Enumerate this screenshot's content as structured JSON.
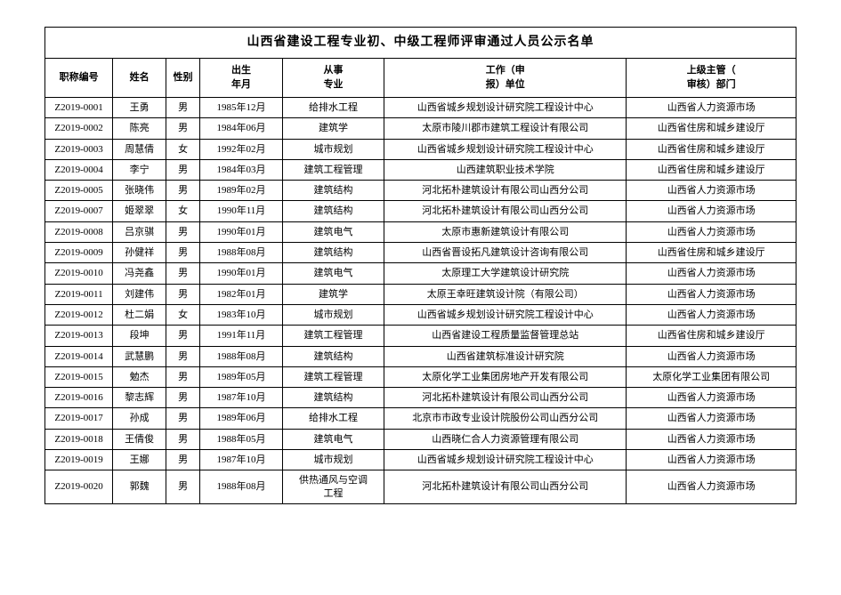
{
  "title": "山西省建设工程专业初、中级工程师评审通过人员公示名单",
  "columns": {
    "id": "职称编号",
    "name": "姓名",
    "sex": "性别",
    "birth": "出生\n年月",
    "major": "从事\n专业",
    "work": "工作（申\n报）单位",
    "dept": "上级主管（\n审核）部门"
  },
  "rows": [
    {
      "id": "Z2019-0001",
      "name": "王勇",
      "sex": "男",
      "birth": "1985年12月",
      "major": "给排水工程",
      "work": "山西省城乡规划设计研究院工程设计中心",
      "dept": "山西省人力资源市场"
    },
    {
      "id": "Z2019-0002",
      "name": "陈亮",
      "sex": "男",
      "birth": "1984年06月",
      "major": "建筑学",
      "work": "太原市陵川郡市建筑工程设计有限公司",
      "dept": "山西省住房和城乡建设厅"
    },
    {
      "id": "Z2019-0003",
      "name": "周慧倩",
      "sex": "女",
      "birth": "1992年02月",
      "major": "城市规划",
      "work": "山西省城乡规划设计研究院工程设计中心",
      "dept": "山西省住房和城乡建设厅"
    },
    {
      "id": "Z2019-0004",
      "name": "李宁",
      "sex": "男",
      "birth": "1984年03月",
      "major": "建筑工程管理",
      "work": "山西建筑职业技术学院",
      "dept": "山西省住房和城乡建设厅"
    },
    {
      "id": "Z2019-0005",
      "name": "张晓伟",
      "sex": "男",
      "birth": "1989年02月",
      "major": "建筑结构",
      "work": "河北拓朴建筑设计有限公司山西分公司",
      "dept": "山西省人力资源市场"
    },
    {
      "id": "Z2019-0007",
      "name": "姬翠翠",
      "sex": "女",
      "birth": "1990年11月",
      "major": "建筑结构",
      "work": "河北拓朴建筑设计有限公司山西分公司",
      "dept": "山西省人力资源市场"
    },
    {
      "id": "Z2019-0008",
      "name": "吕京骐",
      "sex": "男",
      "birth": "1990年01月",
      "major": "建筑电气",
      "work": "太原市惠新建筑设计有限公司",
      "dept": "山西省人力资源市场"
    },
    {
      "id": "Z2019-0009",
      "name": "孙健祥",
      "sex": "男",
      "birth": "1988年08月",
      "major": "建筑结构",
      "work": "山西省晋设拓凡建筑设计咨询有限公司",
      "dept": "山西省住房和城乡建设厅"
    },
    {
      "id": "Z2019-0010",
      "name": "冯尧鑫",
      "sex": "男",
      "birth": "1990年01月",
      "major": "建筑电气",
      "work": "太原理工大学建筑设计研究院",
      "dept": "山西省人力资源市场"
    },
    {
      "id": "Z2019-0011",
      "name": "刘建伟",
      "sex": "男",
      "birth": "1982年01月",
      "major": "建筑学",
      "work": "太原王幸旺建筑设计院（有限公司）",
      "dept": "山西省人力资源市场"
    },
    {
      "id": "Z2019-0012",
      "name": "杜二娟",
      "sex": "女",
      "birth": "1983年10月",
      "major": "城市规划",
      "work": "山西省城乡规划设计研究院工程设计中心",
      "dept": "山西省人力资源市场"
    },
    {
      "id": "Z2019-0013",
      "name": "段坤",
      "sex": "男",
      "birth": "1991年11月",
      "major": "建筑工程管理",
      "work": "山西省建设工程质量监督管理总站",
      "dept": "山西省住房和城乡建设厅"
    },
    {
      "id": "Z2019-0014",
      "name": "武慧鹏",
      "sex": "男",
      "birth": "1988年08月",
      "major": "建筑结构",
      "work": "山西省建筑标准设计研究院",
      "dept": "山西省人力资源市场"
    },
    {
      "id": "Z2019-0015",
      "name": "勉杰",
      "sex": "男",
      "birth": "1989年05月",
      "major": "建筑工程管理",
      "work": "太原化学工业集团房地产开发有限公司",
      "dept": "太原化学工业集团有限公司"
    },
    {
      "id": "Z2019-0016",
      "name": "黎志辉",
      "sex": "男",
      "birth": "1987年10月",
      "major": "建筑结构",
      "work": "河北拓朴建筑设计有限公司山西分公司",
      "dept": "山西省人力资源市场"
    },
    {
      "id": "Z2019-0017",
      "name": "孙成",
      "sex": "男",
      "birth": "1989年06月",
      "major": "给排水工程",
      "work": "北京市市政专业设计院股份公司山西分公司",
      "dept": "山西省人力资源市场"
    },
    {
      "id": "Z2019-0018",
      "name": "王倩俊",
      "sex": "男",
      "birth": "1988年05月",
      "major": "建筑电气",
      "work": "山西晓仁合人力资源管理有限公司",
      "dept": "山西省人力资源市场"
    },
    {
      "id": "Z2019-0019",
      "name": "王娜",
      "sex": "男",
      "birth": "1987年10月",
      "major": "城市规划",
      "work": "山西省城乡规划设计研究院工程设计中心",
      "dept": "山西省人力资源市场"
    },
    {
      "id": "Z2019-0020",
      "name": "郭魏",
      "sex": "男",
      "birth": "1988年08月",
      "major": "供热通风与空调\n工程",
      "work": "河北拓朴建筑设计有限公司山西分公司",
      "dept": "山西省人力资源市场"
    }
  ],
  "style": {
    "border_color": "#000000",
    "background": "#ffffff",
    "title_fontsize": 14,
    "header_fontsize": 11,
    "cell_fontsize": 11,
    "col_widths": {
      "id": 70,
      "name": 55,
      "sex": 35,
      "birth": 85,
      "major": 105,
      "work": 250,
      "dept": 175
    }
  }
}
